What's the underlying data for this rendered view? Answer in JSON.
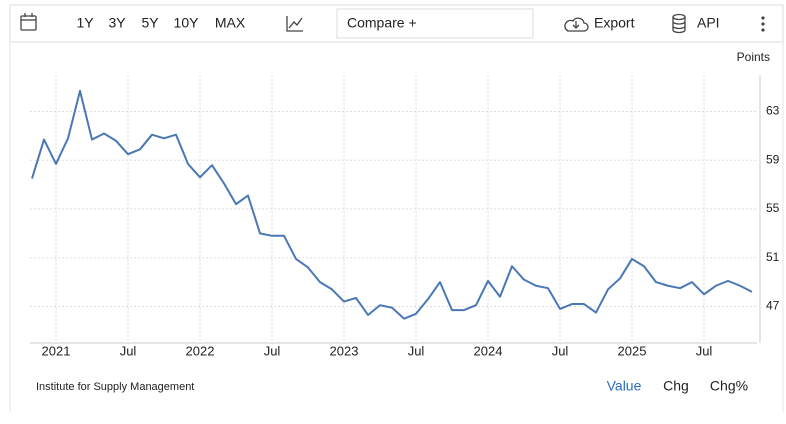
{
  "toolbar": {
    "ranges": [
      "1Y",
      "3Y",
      "5Y",
      "10Y",
      "MAX"
    ],
    "compare": "Compare +",
    "export": "Export",
    "api": "API"
  },
  "footer": {
    "source": "Institute for Supply Management",
    "views": [
      "Value",
      "Chg",
      "Chg%"
    ]
  },
  "chart_data": {
    "type": "line",
    "unit_label": "Points",
    "categories": [
      null,
      null,
      "2021",
      null,
      null,
      null,
      null,
      null,
      "Jul",
      null,
      null,
      null,
      null,
      null,
      "2022",
      null,
      null,
      null,
      null,
      null,
      "Jul",
      null,
      null,
      null,
      null,
      null,
      "2023",
      null,
      null,
      null,
      null,
      null,
      "Jul",
      null,
      null,
      null,
      null,
      null,
      "2024",
      null,
      null,
      null,
      null,
      null,
      "Jul",
      null,
      null,
      null,
      null,
      null,
      "2025",
      null,
      null,
      null,
      null,
      null,
      "Jul",
      null,
      null,
      null,
      null
    ],
    "values": [
      57.5,
      60.7,
      58.7,
      60.8,
      64.7,
      60.7,
      61.2,
      60.6,
      59.5,
      59.9,
      61.1,
      60.8,
      61.1,
      58.7,
      57.6,
      58.6,
      57.1,
      55.4,
      56.1,
      53.0,
      52.8,
      52.8,
      50.9,
      50.2,
      49.0,
      48.4,
      47.4,
      47.7,
      46.3,
      47.1,
      46.9,
      46.0,
      46.4,
      47.6,
      49.0,
      46.7,
      46.7,
      47.1,
      49.1,
      47.8,
      50.3,
      49.2,
      48.7,
      48.5,
      46.8,
      47.2,
      47.2,
      46.5,
      48.4,
      49.3,
      50.9,
      50.3,
      49.0,
      48.7,
      48.5,
      49.0,
      48.0,
      48.7,
      49.1,
      48.7,
      48.2
    ],
    "color": "#4a78b5",
    "ylim": [
      44,
      66
    ],
    "yticks": [
      47,
      51,
      55,
      59,
      63
    ],
    "grid": true,
    "y_axis_side": "right"
  }
}
